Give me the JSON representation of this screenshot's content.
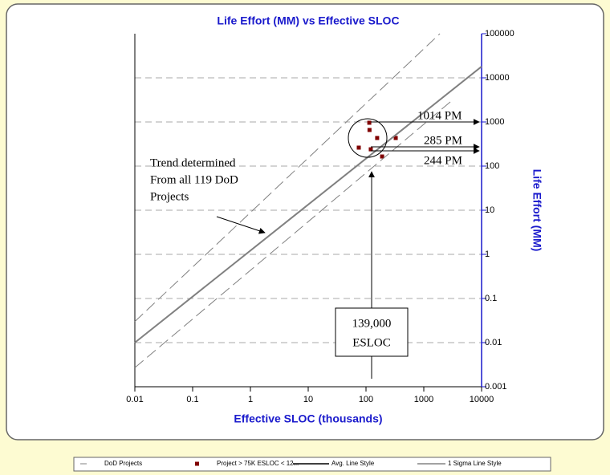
{
  "chart_data": {
    "type": "scatter-line",
    "title": "Life Effort (MM) vs Effective SLOC",
    "x_label": "Effective SLOC (thousands)",
    "y2_label": "Life Effort (MM)",
    "xscale": "log",
    "yscale": "log",
    "xlim": [
      0.01,
      10000
    ],
    "xticks": [
      0.01,
      0.1,
      1,
      10,
      100,
      1000,
      10000
    ],
    "y2lim": [
      0.001,
      100000
    ],
    "y2ticks": [
      0.001,
      0.01,
      0.1,
      1,
      10,
      100,
      1000,
      10000,
      100000
    ],
    "grid": true,
    "series": [
      {
        "name": "DoD Projects",
        "color": "#808080",
        "style": "dash",
        "x": [],
        "values": []
      },
      {
        "name": "Project > 75K ESLOC < 12...",
        "color": "#800000",
        "style": "square",
        "axis": "y2",
        "x": [
          114,
          115,
          156,
          75,
          121,
          327,
          190
        ],
        "values": [
          960,
          658,
          433,
          262,
          240,
          433,
          165
        ]
      },
      {
        "name": "Avg. Line Style",
        "color": "#808080",
        "style": "solid",
        "axis": "y2",
        "x": [
          0.01,
          10000
        ],
        "values": [
          0.01,
          18000
        ]
      },
      {
        "name": "1 Sigma Line Style",
        "color": "#808080",
        "style": "dashed",
        "axis": "y2",
        "x": [
          0.01,
          1900,
          null,
          0.01,
          3200
        ],
        "values": [
          0.03,
          100000,
          null,
          0.0027,
          3200
        ]
      }
    ],
    "annotations": [
      "1014 PM",
      "285 PM",
      "244 PM",
      "Trend determined",
      "From all 119 DoD",
      "Projects",
      "139,000",
      "ESLOC"
    ]
  }
}
